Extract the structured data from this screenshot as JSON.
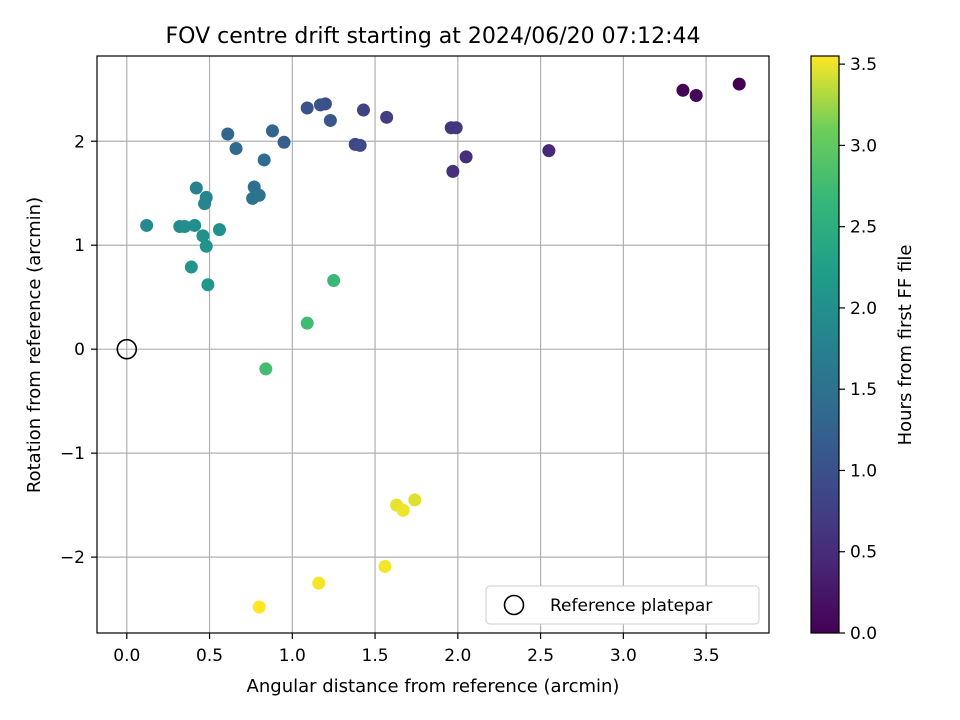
{
  "chart_data": {
    "type": "scatter",
    "title": "FOV centre drift starting at 2024/06/20 07:12:44",
    "xlabel": "Angular distance from reference (arcmin)",
    "ylabel": "Rotation from reference (arcmin)",
    "xlim": [
      -0.18,
      3.88
    ],
    "ylim": [
      -2.73,
      2.82
    ],
    "x_ticks": [
      "0.0",
      "0.5",
      "1.0",
      "1.5",
      "2.0",
      "2.5",
      "3.0",
      "3.5"
    ],
    "x_tick_values": [
      0,
      0.5,
      1.0,
      1.5,
      2.0,
      2.5,
      3.0,
      3.5
    ],
    "y_ticks": [
      "−2",
      "−1",
      "0",
      "1",
      "2"
    ],
    "y_tick_values": [
      -2,
      -1,
      0,
      1,
      2
    ],
    "grid": true,
    "colormap": "viridis",
    "colorbar": {
      "label": "Hours from first FF file",
      "range": [
        0,
        3.55
      ],
      "ticks": [
        "0.0",
        "0.5",
        "1.0",
        "1.5",
        "2.0",
        "2.5",
        "3.0",
        "3.5"
      ],
      "tick_values": [
        0,
        0.5,
        1.0,
        1.5,
        2.0,
        2.5,
        3.0,
        3.5
      ]
    },
    "legend": {
      "label": "Reference platepar",
      "placement": "lower-right",
      "marker": "open-circle"
    },
    "reference_point": {
      "x": 0,
      "y": 0
    },
    "points": [
      {
        "x": 3.7,
        "y": 2.55,
        "hours": 0.0
      },
      {
        "x": 3.36,
        "y": 2.49,
        "hours": 0.03
      },
      {
        "x": 3.44,
        "y": 2.44,
        "hours": 0.07
      },
      {
        "x": 2.55,
        "y": 1.91,
        "hours": 0.45
      },
      {
        "x": 2.05,
        "y": 1.85,
        "hours": 0.52
      },
      {
        "x": 1.97,
        "y": 1.71,
        "hours": 0.56
      },
      {
        "x": 1.96,
        "y": 2.13,
        "hours": 0.62
      },
      {
        "x": 1.99,
        "y": 2.13,
        "hours": 0.66
      },
      {
        "x": 1.57,
        "y": 2.23,
        "hours": 0.75
      },
      {
        "x": 1.43,
        "y": 2.3,
        "hours": 0.8
      },
      {
        "x": 1.38,
        "y": 1.97,
        "hours": 0.86
      },
      {
        "x": 1.41,
        "y": 1.96,
        "hours": 0.9
      },
      {
        "x": 1.2,
        "y": 2.36,
        "hours": 0.98
      },
      {
        "x": 1.17,
        "y": 2.35,
        "hours": 1.02
      },
      {
        "x": 1.09,
        "y": 2.32,
        "hours": 1.05
      },
      {
        "x": 1.23,
        "y": 2.2,
        "hours": 1.1
      },
      {
        "x": 0.95,
        "y": 1.99,
        "hours": 1.2
      },
      {
        "x": 0.88,
        "y": 2.1,
        "hours": 1.28
      },
      {
        "x": 0.61,
        "y": 2.07,
        "hours": 1.32
      },
      {
        "x": 0.66,
        "y": 1.93,
        "hours": 1.36
      },
      {
        "x": 0.83,
        "y": 1.82,
        "hours": 1.42
      },
      {
        "x": 0.77,
        "y": 1.56,
        "hours": 1.47
      },
      {
        "x": 0.8,
        "y": 1.48,
        "hours": 1.5
      },
      {
        "x": 0.76,
        "y": 1.45,
        "hours": 1.54
      },
      {
        "x": 0.42,
        "y": 1.55,
        "hours": 1.78
      },
      {
        "x": 0.48,
        "y": 1.46,
        "hours": 1.82
      },
      {
        "x": 0.47,
        "y": 1.4,
        "hours": 1.86
      },
      {
        "x": 0.12,
        "y": 1.19,
        "hours": 1.9
      },
      {
        "x": 0.32,
        "y": 1.18,
        "hours": 1.94
      },
      {
        "x": 0.35,
        "y": 1.18,
        "hours": 1.96
      },
      {
        "x": 0.41,
        "y": 1.19,
        "hours": 1.98
      },
      {
        "x": 0.56,
        "y": 1.15,
        "hours": 2.0
      },
      {
        "x": 0.46,
        "y": 1.09,
        "hours": 2.02
      },
      {
        "x": 0.48,
        "y": 0.99,
        "hours": 2.05
      },
      {
        "x": 0.39,
        "y": 0.79,
        "hours": 2.08
      },
      {
        "x": 0.49,
        "y": 0.62,
        "hours": 2.1
      },
      {
        "x": 1.25,
        "y": 0.66,
        "hours": 2.7
      },
      {
        "x": 1.09,
        "y": 0.25,
        "hours": 2.75
      },
      {
        "x": 0.84,
        "y": -0.19,
        "hours": 2.78
      },
      {
        "x": 1.74,
        "y": -1.45,
        "hours": 3.45
      },
      {
        "x": 1.63,
        "y": -1.5,
        "hours": 3.48
      },
      {
        "x": 1.67,
        "y": -1.55,
        "hours": 3.5
      },
      {
        "x": 1.56,
        "y": -2.09,
        "hours": 3.52
      },
      {
        "x": 1.16,
        "y": -2.25,
        "hours": 3.53
      },
      {
        "x": 0.8,
        "y": -2.48,
        "hours": 3.55
      }
    ]
  }
}
